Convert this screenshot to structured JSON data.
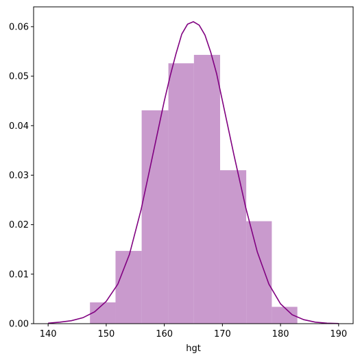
{
  "chart_data": {
    "type": "bar",
    "xlabel": "hgt",
    "ylabel": "",
    "xlim": [
      137.5,
      192.5
    ],
    "ylim": [
      0,
      0.064
    ],
    "xticks": [
      140,
      150,
      160,
      170,
      180,
      190
    ],
    "yticks": [
      0.0,
      0.01,
      0.02,
      0.03,
      0.04,
      0.05,
      0.06
    ],
    "ytick_labels": [
      "0.00",
      "0.01",
      "0.02",
      "0.03",
      "0.04",
      "0.05",
      "0.06"
    ],
    "grid": false,
    "colors": {
      "bars": "#c99acd",
      "curve": "#800080"
    },
    "bins": [
      {
        "x0": 147.2,
        "x1": 151.6,
        "value": 0.0043
      },
      {
        "x0": 151.6,
        "x1": 156.1,
        "value": 0.0147
      },
      {
        "x0": 156.1,
        "x1": 160.7,
        "value": 0.0431
      },
      {
        "x0": 160.7,
        "x1": 165.1,
        "value": 0.0526
      },
      {
        "x0": 165.1,
        "x1": 169.6,
        "value": 0.0543
      },
      {
        "x0": 169.6,
        "x1": 174.1,
        "value": 0.031
      },
      {
        "x0": 174.1,
        "x1": 178.5,
        "value": 0.0207
      },
      {
        "x0": 178.5,
        "x1": 182.9,
        "value": 0.0034
      }
    ],
    "curve": {
      "name": "",
      "points": [
        [
          140,
          0.0001
        ],
        [
          142,
          0.0003
        ],
        [
          144,
          0.0006
        ],
        [
          146,
          0.0012
        ],
        [
          148,
          0.0024
        ],
        [
          150,
          0.0045
        ],
        [
          152,
          0.008
        ],
        [
          154,
          0.014
        ],
        [
          156,
          0.023
        ],
        [
          158,
          0.034
        ],
        [
          160,
          0.045
        ],
        [
          161,
          0.05
        ],
        [
          162,
          0.0545
        ],
        [
          163,
          0.0585
        ],
        [
          164,
          0.0605
        ],
        [
          165,
          0.061
        ],
        [
          166,
          0.0603
        ],
        [
          167,
          0.0583
        ],
        [
          168,
          0.0548
        ],
        [
          169,
          0.0505
        ],
        [
          170,
          0.045
        ],
        [
          172,
          0.034
        ],
        [
          174,
          0.0235
        ],
        [
          176,
          0.0145
        ],
        [
          178,
          0.008
        ],
        [
          180,
          0.004
        ],
        [
          182,
          0.0018
        ],
        [
          184,
          0.0008
        ],
        [
          186,
          0.0003
        ],
        [
          188,
          0.0001
        ],
        [
          190,
          3e-05
        ]
      ]
    }
  }
}
